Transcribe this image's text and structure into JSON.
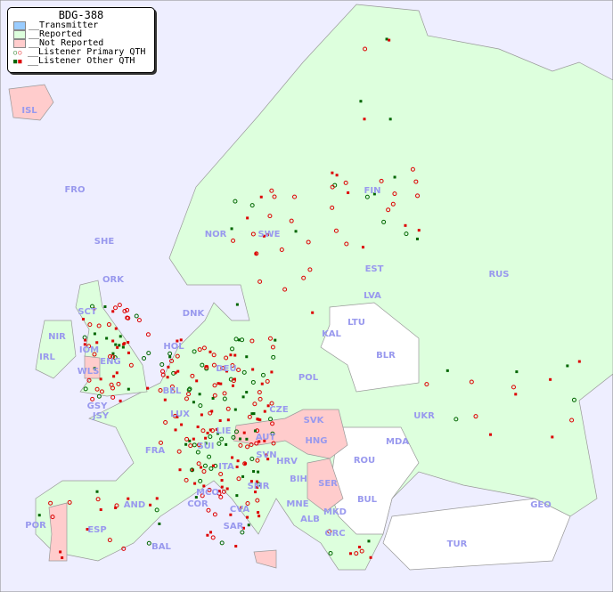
{
  "title": "BDG-388",
  "legend": [
    {
      "label": "__Transmitter",
      "color": "#99ccff",
      "kind": "swatch"
    },
    {
      "label": "__Reported",
      "color": "#ddffdd",
      "kind": "swatch"
    },
    {
      "label": "__Not Reported",
      "color": "#ffcccc",
      "kind": "swatch"
    },
    {
      "label": "__Listener Primary QTH",
      "kind": "circle",
      "colors": [
        "#006600",
        "#dd0000"
      ]
    },
    {
      "label": "__Listener Other QTH",
      "kind": "square",
      "colors": [
        "#006600",
        "#dd0000"
      ]
    }
  ],
  "colors": {
    "sea": "#eeeeff",
    "reported": "#ddffdd",
    "not_reported": "#ffcccc",
    "no_data": "#ffffff",
    "label": "#9999ee"
  },
  "countries": [
    {
      "code": "ISL",
      "status": "not_reported"
    },
    {
      "code": "FRO"
    },
    {
      "code": "SHE"
    },
    {
      "code": "ORK"
    },
    {
      "code": "NOR",
      "status": "reported"
    },
    {
      "code": "SWE",
      "status": "reported"
    },
    {
      "code": "FIN",
      "status": "reported"
    },
    {
      "code": "EST",
      "status": "reported"
    },
    {
      "code": "RUS",
      "status": "reported"
    },
    {
      "code": "LVA",
      "status": "reported"
    },
    {
      "code": "LTU",
      "status": "no_data"
    },
    {
      "code": "KAL",
      "status": "no_data"
    },
    {
      "code": "BLR",
      "status": "no_data"
    },
    {
      "code": "DNK",
      "status": "reported"
    },
    {
      "code": "HOL",
      "status": "reported"
    },
    {
      "code": "DEU",
      "status": "reported"
    },
    {
      "code": "POL",
      "status": "reported"
    },
    {
      "code": "IRL",
      "status": "reported"
    },
    {
      "code": "SCT",
      "status": "reported"
    },
    {
      "code": "NIR",
      "status": "reported"
    },
    {
      "code": "IOM",
      "status": "reported"
    },
    {
      "code": "WLS",
      "status": "not_reported"
    },
    {
      "code": "ENG",
      "status": "reported"
    },
    {
      "code": "GSY"
    },
    {
      "code": "JSY"
    },
    {
      "code": "BEL",
      "status": "reported"
    },
    {
      "code": "LUX",
      "status": "reported"
    },
    {
      "code": "CZE",
      "status": "reported"
    },
    {
      "code": "SVK",
      "status": "not_reported"
    },
    {
      "code": "UKR",
      "status": "reported"
    },
    {
      "code": "MDA",
      "status": "no_data"
    },
    {
      "code": "FRA",
      "status": "reported"
    },
    {
      "code": "SUI",
      "status": "reported"
    },
    {
      "code": "LIE",
      "status": "reported"
    },
    {
      "code": "AUT",
      "status": "not_reported"
    },
    {
      "code": "HNG",
      "status": "not_reported"
    },
    {
      "code": "SVN",
      "status": "reported"
    },
    {
      "code": "HRV",
      "status": "reported"
    },
    {
      "code": "ROU",
      "status": "no_data"
    },
    {
      "code": "ITA",
      "status": "reported"
    },
    {
      "code": "BIH",
      "status": "reported"
    },
    {
      "code": "SER",
      "status": "not_reported"
    },
    {
      "code": "MCO"
    },
    {
      "code": "COR"
    },
    {
      "code": "SMR"
    },
    {
      "code": "AND"
    },
    {
      "code": "BUL",
      "status": "no_data"
    },
    {
      "code": "MNE"
    },
    {
      "code": "MKD",
      "status": "no_data"
    },
    {
      "code": "ALB"
    },
    {
      "code": "GEO",
      "status": "no_data"
    },
    {
      "code": "POR",
      "status": "not_reported"
    },
    {
      "code": "ESP",
      "status": "reported"
    },
    {
      "code": "CVA"
    },
    {
      "code": "SAR"
    },
    {
      "code": "GRC",
      "status": "reported"
    },
    {
      "code": "TUR",
      "status": "no_data"
    },
    {
      "code": "BAL"
    }
  ]
}
